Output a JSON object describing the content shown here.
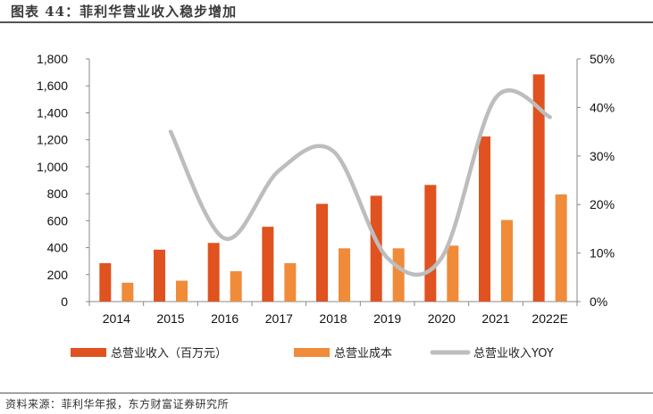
{
  "figure": {
    "title": "图表 44：菲利华营业收入稳步增加",
    "source": "资料来源：菲利华年报，东方财富证券研究所"
  },
  "colors": {
    "revenue": "#E0521F",
    "cost": "#F08B3A",
    "yoy": "#BDBDBD",
    "axis": "#888888"
  },
  "chart_data": {
    "type": "bar",
    "title": "菲利华营业收入稳步增加",
    "categories": [
      "2014",
      "2015",
      "2016",
      "2017",
      "2018",
      "2019",
      "2020",
      "2021",
      "2022E"
    ],
    "series": [
      {
        "name": "总营业收入（百万元）",
        "type": "bar",
        "axis": "left",
        "values": [
          285,
          385,
          435,
          555,
          725,
          785,
          865,
          1225,
          1685
        ]
      },
      {
        "name": "总营业成本",
        "type": "bar",
        "axis": "left",
        "values": [
          140,
          155,
          225,
          285,
          395,
          395,
          415,
          605,
          795
        ]
      },
      {
        "name": "总营业收入YOY",
        "type": "line",
        "axis": "right",
        "values": [
          null,
          35,
          13,
          27,
          31,
          9,
          9,
          42,
          38
        ]
      }
    ],
    "yleft": {
      "min": 0,
      "max": 1800,
      "step": 200,
      "ticks": [
        "0",
        "200",
        "400",
        "600",
        "800",
        "1,000",
        "1,200",
        "1,400",
        "1,600",
        "1,800"
      ]
    },
    "yright": {
      "min": 0,
      "max": 50,
      "step": 10,
      "ticks": [
        "0%",
        "10%",
        "20%",
        "30%",
        "40%",
        "50%"
      ]
    },
    "legend_position": "bottom"
  }
}
